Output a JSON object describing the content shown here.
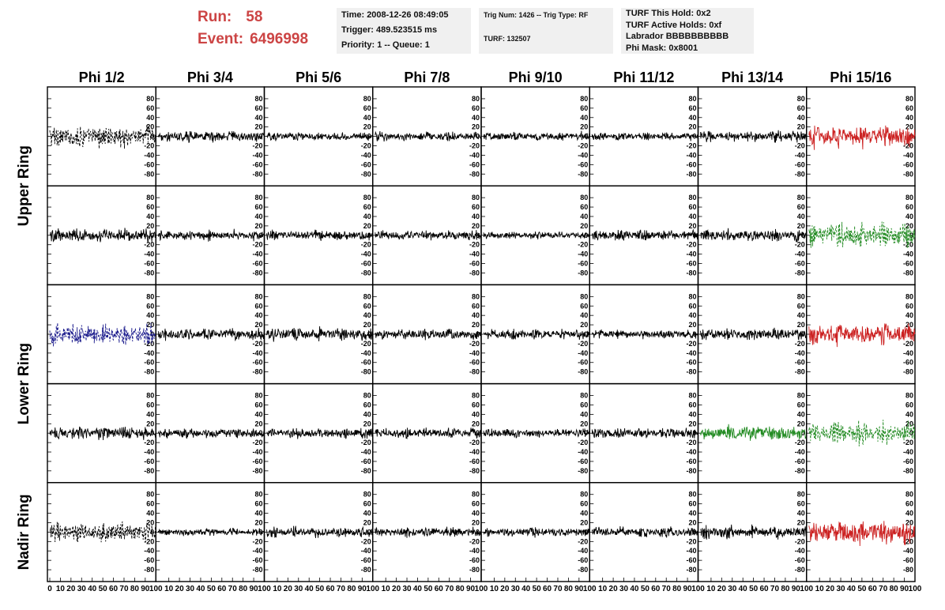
{
  "header": {
    "run_label": "Run:",
    "run_value": "58",
    "event_label": "Event:",
    "event_value": "6496998",
    "run_color": "#cc4444"
  },
  "info": {
    "time": "Time: 2008-12-26 08:49:05",
    "trigger": "Trigger: 489.523515 ms",
    "priority": "Priority: 1 -- Queue: 1",
    "trig_num": "Trig Num: 1426 -- Trig Type: RF",
    "turf": "TURF: 132507",
    "turf_hold": "TURF This Hold: 0x2",
    "turf_active": "TURF Active Holds: 0xf",
    "labrador": "Labrador BBBBBBBBBB",
    "phi_mask": "Phi Mask: 0x8001"
  },
  "chart_data": {
    "type": "line",
    "columns": [
      "Phi 1/2",
      "Phi 3/4",
      "Phi 5/6",
      "Phi 7/8",
      "Phi 9/10",
      "Phi 11/12",
      "Phi 13/14",
      "Phi 15/16"
    ],
    "ring_labels": [
      "Upper Ring",
      "Lower Ring",
      "Nadir Ring"
    ],
    "ring_rows": [
      [
        0,
        1
      ],
      [
        2,
        3
      ],
      [
        4,
        4
      ]
    ],
    "ylim": [
      -95,
      95
    ],
    "xlim": [
      0,
      100
    ],
    "yticks": [
      -80,
      -60,
      -40,
      -20,
      0,
      20,
      40,
      60,
      80
    ],
    "xticks": [
      0,
      10,
      20,
      30,
      40,
      50,
      60,
      70,
      80,
      90,
      100
    ],
    "colors": {
      "black": "#000000",
      "red": "#cc2222",
      "green": "#228b22",
      "blue": "#1a1a8c"
    },
    "panels": [
      [
        {
          "c": "black",
          "d": 1,
          "a": 30
        },
        {
          "c": "black",
          "d": 0,
          "a": 15
        },
        {
          "c": "black",
          "d": 0,
          "a": 12
        },
        {
          "c": "black",
          "d": 0,
          "a": 12
        },
        {
          "c": "black",
          "d": 0,
          "a": 12
        },
        {
          "c": "black",
          "d": 0,
          "a": 10
        },
        {
          "c": "black",
          "d": 0,
          "a": 15
        },
        {
          "c": "red",
          "d": 0,
          "a": 30
        }
      ],
      [
        {
          "c": "black",
          "d": 0,
          "a": 18
        },
        {
          "c": "black",
          "d": 0,
          "a": 14
        },
        {
          "c": "black",
          "d": 0,
          "a": 14
        },
        {
          "c": "black",
          "d": 0,
          "a": 14
        },
        {
          "c": "black",
          "d": 0,
          "a": 10
        },
        {
          "c": "black",
          "d": 0,
          "a": 14
        },
        {
          "c": "black",
          "d": 0,
          "a": 16
        },
        {
          "c": "green",
          "d": 1,
          "a": 35
        }
      ],
      [
        {
          "c": "blue",
          "d": 1,
          "a": 30
        },
        {
          "c": "black",
          "d": 0,
          "a": 16
        },
        {
          "c": "black",
          "d": 0,
          "a": 18
        },
        {
          "c": "black",
          "d": 0,
          "a": 14
        },
        {
          "c": "black",
          "d": 0,
          "a": 14
        },
        {
          "c": "black",
          "d": 0,
          "a": 12
        },
        {
          "c": "black",
          "d": 0,
          "a": 16
        },
        {
          "c": "red",
          "d": 0,
          "a": 28
        }
      ],
      [
        {
          "c": "black",
          "d": 0,
          "a": 18
        },
        {
          "c": "black",
          "d": 0,
          "a": 14
        },
        {
          "c": "black",
          "d": 0,
          "a": 14
        },
        {
          "c": "black",
          "d": 0,
          "a": 14
        },
        {
          "c": "black",
          "d": 0,
          "a": 12
        },
        {
          "c": "black",
          "d": 0,
          "a": 14
        },
        {
          "c": "green",
          "d": 0,
          "a": 20
        },
        {
          "c": "green",
          "d": 1,
          "a": 30
        }
      ],
      [
        {
          "c": "black",
          "d": 1,
          "a": 28
        },
        {
          "c": "black",
          "d": 0,
          "a": 10
        },
        {
          "c": "black",
          "d": 0,
          "a": 14
        },
        {
          "c": "black",
          "d": 0,
          "a": 14
        },
        {
          "c": "black",
          "d": 0,
          "a": 12
        },
        {
          "c": "black",
          "d": 0,
          "a": 14
        },
        {
          "c": "black",
          "d": 0,
          "a": 18
        },
        {
          "c": "red",
          "d": 0,
          "a": 32
        }
      ]
    ]
  }
}
